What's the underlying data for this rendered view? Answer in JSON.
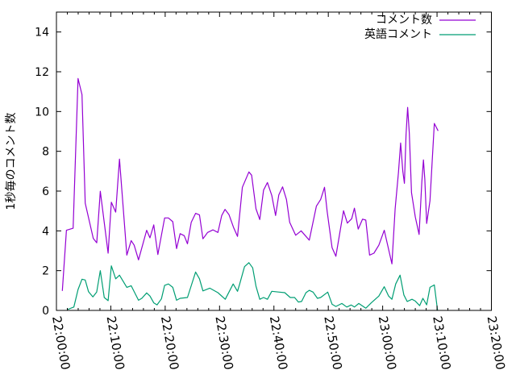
{
  "chart_data": {
    "type": "line",
    "title": "",
    "xlabel": "",
    "ylabel": "1秒毎のコメント数",
    "xlim": [
      "22:00:00",
      "23:20:00"
    ],
    "ylim": [
      0,
      15
    ],
    "x_ticks": [
      "22:00:00",
      "22:10:00",
      "22:20:00",
      "22:30:00",
      "22:40:00",
      "22:50:00",
      "23:00:00",
      "23:10:00",
      "23:20:00"
    ],
    "y_ticks": [
      "0",
      "2",
      "4",
      "6",
      "8",
      "10",
      "12",
      "14"
    ],
    "grid": false,
    "legend_position": "top-right",
    "series": [
      {
        "name": "コメント数",
        "color": "#9400d3",
        "x": [
          "22:01:05",
          "22:01:50",
          "22:03:04",
          "22:03:58",
          "22:04:42",
          "22:05:18",
          "22:06:47",
          "22:07:25",
          "22:08:04",
          "22:09:30",
          "22:10:06",
          "22:10:54",
          "22:11:36",
          "22:12:57",
          "22:13:45",
          "22:14:18",
          "22:15:06",
          "22:16:36",
          "22:17:12",
          "22:17:54",
          "22:18:39",
          "22:19:54",
          "22:20:36",
          "22:21:24",
          "22:22:06",
          "22:22:45",
          "22:23:30",
          "22:24:06",
          "22:24:48",
          "22:25:36",
          "22:26:18",
          "22:26:57",
          "22:27:48",
          "22:28:48",
          "22:29:42",
          "22:30:24",
          "22:31:00",
          "22:31:45",
          "22:32:36",
          "22:33:18",
          "22:34:12",
          "22:35:24",
          "22:35:54",
          "22:36:42",
          "22:37:24",
          "22:38:06",
          "22:38:48",
          "22:39:36",
          "22:40:18",
          "22:40:54",
          "22:41:36",
          "22:42:18",
          "22:42:54",
          "22:44:00",
          "22:45:00",
          "22:46:30",
          "22:47:48",
          "22:48:36",
          "22:49:18",
          "22:49:48",
          "22:50:42",
          "22:51:24",
          "22:52:12",
          "22:52:48",
          "22:53:30",
          "22:54:18",
          "22:54:48",
          "22:55:30",
          "22:56:18",
          "22:56:54",
          "22:57:36",
          "22:58:24",
          "22:59:18",
          "23:00:18",
          "23:01:42",
          "23:02:18",
          "23:02:54",
          "23:03:18",
          "23:03:42",
          "23:04:00",
          "23:04:18",
          "23:04:36",
          "23:04:54",
          "23:05:18",
          "23:06:00",
          "23:06:42",
          "23:07:12",
          "23:07:30",
          "23:07:45",
          "23:08:06",
          "23:08:42",
          "23:09:06",
          "23:09:30",
          "23:10:12"
        ],
        "y": [
          0.98,
          4.03,
          4.13,
          11.66,
          10.85,
          5.39,
          3.62,
          3.4,
          5.99,
          2.88,
          5.44,
          4.94,
          7.61,
          2.78,
          3.51,
          3.28,
          2.54,
          4.03,
          3.65,
          4.3,
          2.81,
          4.65,
          4.65,
          4.46,
          3.11,
          3.86,
          3.76,
          3.35,
          4.43,
          4.88,
          4.8,
          3.6,
          3.92,
          4.05,
          3.92,
          4.77,
          5.08,
          4.81,
          4.16,
          3.72,
          6.19,
          6.96,
          6.8,
          5.11,
          4.57,
          6.05,
          6.43,
          5.78,
          4.77,
          5.81,
          6.21,
          5.58,
          4.43,
          3.78,
          4.0,
          3.53,
          5.24,
          5.58,
          6.19,
          4.97,
          3.15,
          2.72,
          4.03,
          5.01,
          4.39,
          4.61,
          5.14,
          4.09,
          4.59,
          4.54,
          2.78,
          2.88,
          3.28,
          4.03,
          2.34,
          5.11,
          6.93,
          8.42,
          7.0,
          6.39,
          8.82,
          10.21,
          8.89,
          5.92,
          4.7,
          3.82,
          6.46,
          7.57,
          6.6,
          4.37,
          5.51,
          7.47,
          9.4,
          9.03
        ]
      },
      {
        "name": "英語コメント",
        "color": "#009e73",
        "x": [
          "22:02:00",
          "22:03:12",
          "22:03:58",
          "22:04:42",
          "22:05:18",
          "22:05:54",
          "22:06:42",
          "22:07:24",
          "22:08:04",
          "22:08:48",
          "22:09:30",
          "22:10:06",
          "22:10:54",
          "22:11:36",
          "22:12:57",
          "22:13:45",
          "22:15:06",
          "22:15:42",
          "22:16:36",
          "22:17:12",
          "22:17:54",
          "22:18:30",
          "22:19:18",
          "22:19:54",
          "22:20:36",
          "22:21:24",
          "22:22:06",
          "22:22:45",
          "22:24:06",
          "22:25:36",
          "22:26:18",
          "22:26:57",
          "22:28:12",
          "22:29:42",
          "22:31:03",
          "22:32:30",
          "22:33:18",
          "22:33:42",
          "22:34:36",
          "22:35:24",
          "22:36:06",
          "22:36:42",
          "22:37:24",
          "22:38:06",
          "22:38:48",
          "22:39:36",
          "22:41:00",
          "22:42:00",
          "22:43:00",
          "22:43:48",
          "22:44:30",
          "22:45:06",
          "22:45:54",
          "22:46:30",
          "22:47:12",
          "22:48:00",
          "22:48:36",
          "22:49:54",
          "22:50:42",
          "22:51:24",
          "22:52:30",
          "22:53:24",
          "22:54:12",
          "22:54:48",
          "22:55:36",
          "22:56:54",
          "22:57:54",
          "22:59:18",
          "23:00:18",
          "23:01:06",
          "23:01:42",
          "23:02:24",
          "23:03:12",
          "23:03:54",
          "23:04:30",
          "23:05:24",
          "23:06:00",
          "23:06:48",
          "23:07:24",
          "23:08:06",
          "23:08:42",
          "23:09:30",
          "23:10:06"
        ],
        "y": [
          0.04,
          0.17,
          1.05,
          1.57,
          1.53,
          0.94,
          0.68,
          0.92,
          2.0,
          0.65,
          0.49,
          2.24,
          1.59,
          1.77,
          1.16,
          1.24,
          0.51,
          0.61,
          0.88,
          0.72,
          0.38,
          0.28,
          0.58,
          1.26,
          1.33,
          1.16,
          0.51,
          0.61,
          0.65,
          1.93,
          1.59,
          0.98,
          1.12,
          0.89,
          0.56,
          1.33,
          0.96,
          1.33,
          2.2,
          2.4,
          2.14,
          1.22,
          0.56,
          0.65,
          0.56,
          0.96,
          0.92,
          0.89,
          0.65,
          0.65,
          0.42,
          0.45,
          0.89,
          1.01,
          0.92,
          0.61,
          0.65,
          0.92,
          0.31,
          0.2,
          0.35,
          0.17,
          0.27,
          0.17,
          0.35,
          0.11,
          0.38,
          0.72,
          1.19,
          0.72,
          0.56,
          1.33,
          1.77,
          0.78,
          0.45,
          0.56,
          0.47,
          0.24,
          0.61,
          0.28,
          1.16,
          1.28,
          0.0
        ]
      }
    ]
  }
}
